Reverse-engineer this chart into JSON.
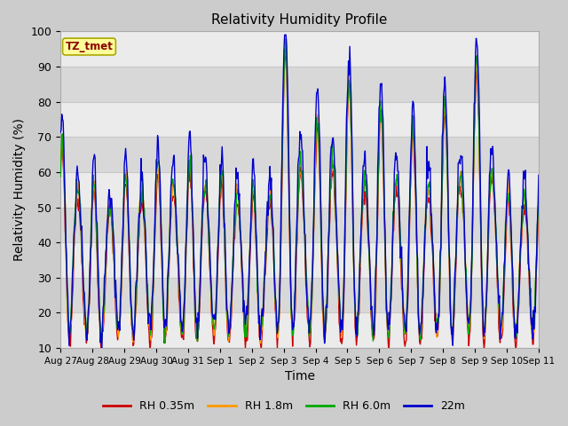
{
  "title": "Relativity Humidity Profile",
  "xlabel": "Time",
  "ylabel": "Relativity Humidity (%)",
  "ylim": [
    10,
    100
  ],
  "annotation": "TZ_tmet",
  "legend_labels": [
    "RH 0.35m",
    "RH 1.8m",
    "RH 6.0m",
    "22m"
  ],
  "line_colors": [
    "#cc0000",
    "#ff9900",
    "#00aa00",
    "#0000cc"
  ],
  "x_tick_labels": [
    "Aug 27",
    "Aug 28",
    "Aug 29",
    "Aug 30",
    "Aug 31",
    "Sep 1",
    "Sep 2",
    "Sep 3",
    "Sep 4",
    "Sep 5",
    "Sep 6",
    "Sep 7",
    "Sep 8",
    "Sep 9",
    "Sep 10",
    "Sep 11"
  ],
  "yticks": [
    10,
    20,
    30,
    40,
    50,
    60,
    70,
    80,
    90,
    100
  ],
  "band_color_light": "#ebebeb",
  "band_color_dark": "#d8d8d8",
  "plot_bg": "#ffffff",
  "fig_bg": "#cccccc",
  "grid_color": "#c8c8c8"
}
